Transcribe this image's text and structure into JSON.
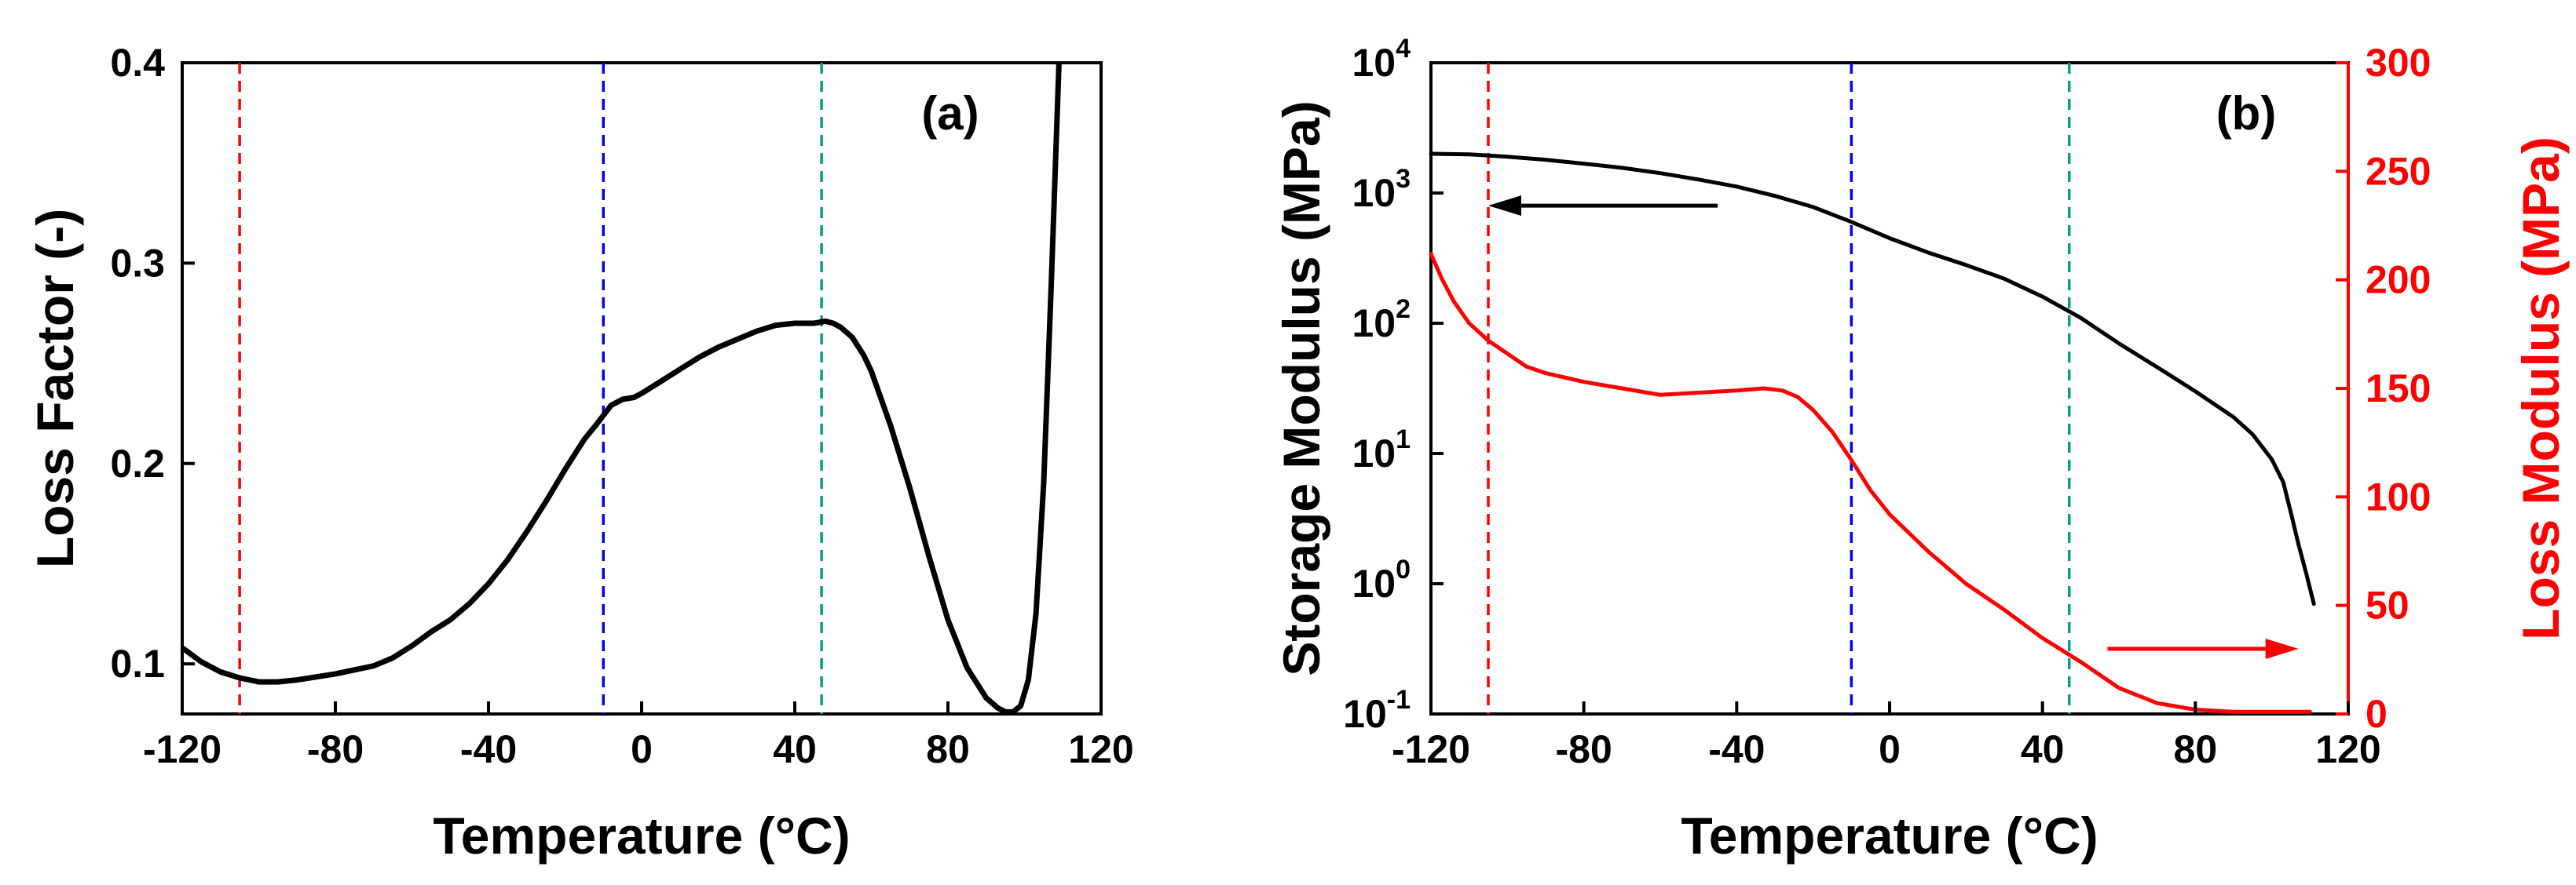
{
  "colors": {
    "axis": "#000000",
    "loss_modulus": "#ff0000",
    "line_red": "#ff0000",
    "line_blue": "#0000ff",
    "line_teal": "#00a08a"
  },
  "chart_data": [
    {
      "type": "line",
      "panel_label": "(a)",
      "xlabel": "Temperature (°C)",
      "ylabel": "Loss Factor (-)",
      "xlim": [
        -120,
        120
      ],
      "ylim": [
        0.075,
        0.4
      ],
      "x_ticks": [
        -120,
        -80,
        -40,
        0,
        40,
        80,
        120
      ],
      "x_tick_labels": [
        "-120",
        "-80",
        "-40",
        "0",
        "40",
        "80",
        "120"
      ],
      "y_ticks": [
        0.1,
        0.2,
        0.3,
        0.4
      ],
      "y_tick_labels": [
        "0.1",
        "0.2",
        "0.3",
        "0.4"
      ],
      "grid": false,
      "reference_lines": [
        {
          "x": -105,
          "color": "red",
          "style": "dashed"
        },
        {
          "x": -10,
          "color": "blue",
          "style": "dashed"
        },
        {
          "x": 47,
          "color": "teal",
          "style": "dashed"
        }
      ],
      "series": [
        {
          "name": "Loss Factor",
          "color": "black",
          "x": [
            -120,
            -115,
            -110,
            -105,
            -100,
            -95,
            -90,
            -80,
            -70,
            -65,
            -60,
            -55,
            -50,
            -45,
            -40,
            -35,
            -30,
            -25,
            -20,
            -15,
            -12,
            -10,
            -8,
            -5,
            -2,
            0,
            5,
            10,
            15,
            20,
            25,
            30,
            35,
            40,
            45,
            48,
            50,
            52,
            55,
            58,
            60,
            65,
            70,
            75,
            80,
            85,
            90,
            93,
            95,
            97,
            99,
            101,
            103,
            105,
            107,
            109
          ],
          "y": [
            0.108,
            0.101,
            0.096,
            0.093,
            0.091,
            0.091,
            0.092,
            0.095,
            0.099,
            0.103,
            0.109,
            0.116,
            0.122,
            0.13,
            0.14,
            0.152,
            0.166,
            0.181,
            0.197,
            0.212,
            0.219,
            0.224,
            0.229,
            0.232,
            0.233,
            0.235,
            0.241,
            0.247,
            0.253,
            0.258,
            0.262,
            0.266,
            0.269,
            0.27,
            0.27,
            0.271,
            0.27,
            0.268,
            0.263,
            0.254,
            0.246,
            0.219,
            0.188,
            0.154,
            0.122,
            0.098,
            0.083,
            0.078,
            0.076,
            0.076,
            0.079,
            0.092,
            0.125,
            0.19,
            0.29,
            0.4
          ]
        }
      ]
    },
    {
      "type": "line",
      "panel_label": "(b)",
      "xlabel": "Temperature (°C)",
      "ylabel": "Storage Modulus (MPa)",
      "ylabel_right": "Loss Modulus (MPa)",
      "xlim": [
        -120,
        120
      ],
      "ylim": [
        0.1,
        10000
      ],
      "yscale": "log",
      "ylim_right": [
        0,
        300
      ],
      "x_ticks": [
        -120,
        -80,
        -40,
        0,
        40,
        80,
        120
      ],
      "x_tick_labels": [
        "-120",
        "-80",
        "-40",
        "0",
        "40",
        "80",
        "120"
      ],
      "y_ticks_exponents": [
        -1,
        0,
        1,
        2,
        3,
        4
      ],
      "y_tick_base": "10",
      "y_right_ticks": [
        0,
        50,
        100,
        150,
        200,
        250,
        300
      ],
      "y_right_tick_labels": [
        "0",
        "50",
        "100",
        "150",
        "200",
        "250",
        "300"
      ],
      "grid": false,
      "reference_lines": [
        {
          "x": -105,
          "color": "red",
          "style": "dashed"
        },
        {
          "x": -10,
          "color": "blue",
          "style": "dashed"
        },
        {
          "x": 47,
          "color": "teal",
          "style": "dashed"
        }
      ],
      "annotations": [
        {
          "type": "arrow",
          "color": "black",
          "from_x": -45,
          "to_x": -105,
          "y_value": 800,
          "axis": "left"
        },
        {
          "type": "arrow",
          "color": "red",
          "from_x": 57,
          "to_x": 107,
          "y_value": 30,
          "axis": "right"
        }
      ],
      "series": [
        {
          "name": "Storage Modulus",
          "axis": "left",
          "color": "black",
          "x": [
            -120,
            -110,
            -100,
            -90,
            -80,
            -70,
            -60,
            -50,
            -40,
            -30,
            -20,
            -10,
            0,
            10,
            20,
            30,
            40,
            50,
            60,
            70,
            80,
            90,
            95,
            100,
            103,
            105,
            107,
            109,
            111
          ],
          "y": [
            2000,
            1980,
            1900,
            1800,
            1680,
            1560,
            1420,
            1270,
            1120,
            950,
            780,
            600,
            450,
            350,
            280,
            220,
            160,
            110,
            70,
            46,
            30,
            19,
            14,
            9,
            6,
            3.5,
            2.0,
            1.2,
            0.7
          ]
        },
        {
          "name": "Loss Modulus",
          "axis": "right",
          "color": "red",
          "x": [
            -120,
            -117,
            -114,
            -110,
            -105,
            -100,
            -95,
            -90,
            -80,
            -70,
            -60,
            -50,
            -40,
            -33,
            -28,
            -24,
            -20,
            -15,
            -10,
            -5,
            0,
            10,
            20,
            30,
            40,
            50,
            60,
            70,
            80,
            90,
            100,
            110
          ],
          "y": [
            212,
            200,
            190,
            180,
            172,
            166,
            160,
            157,
            153,
            150,
            147,
            148,
            149,
            150,
            149,
            146,
            140,
            130,
            117,
            103,
            92,
            75,
            60,
            48,
            35,
            24,
            12,
            5,
            2,
            1,
            1,
            1
          ]
        }
      ]
    }
  ]
}
